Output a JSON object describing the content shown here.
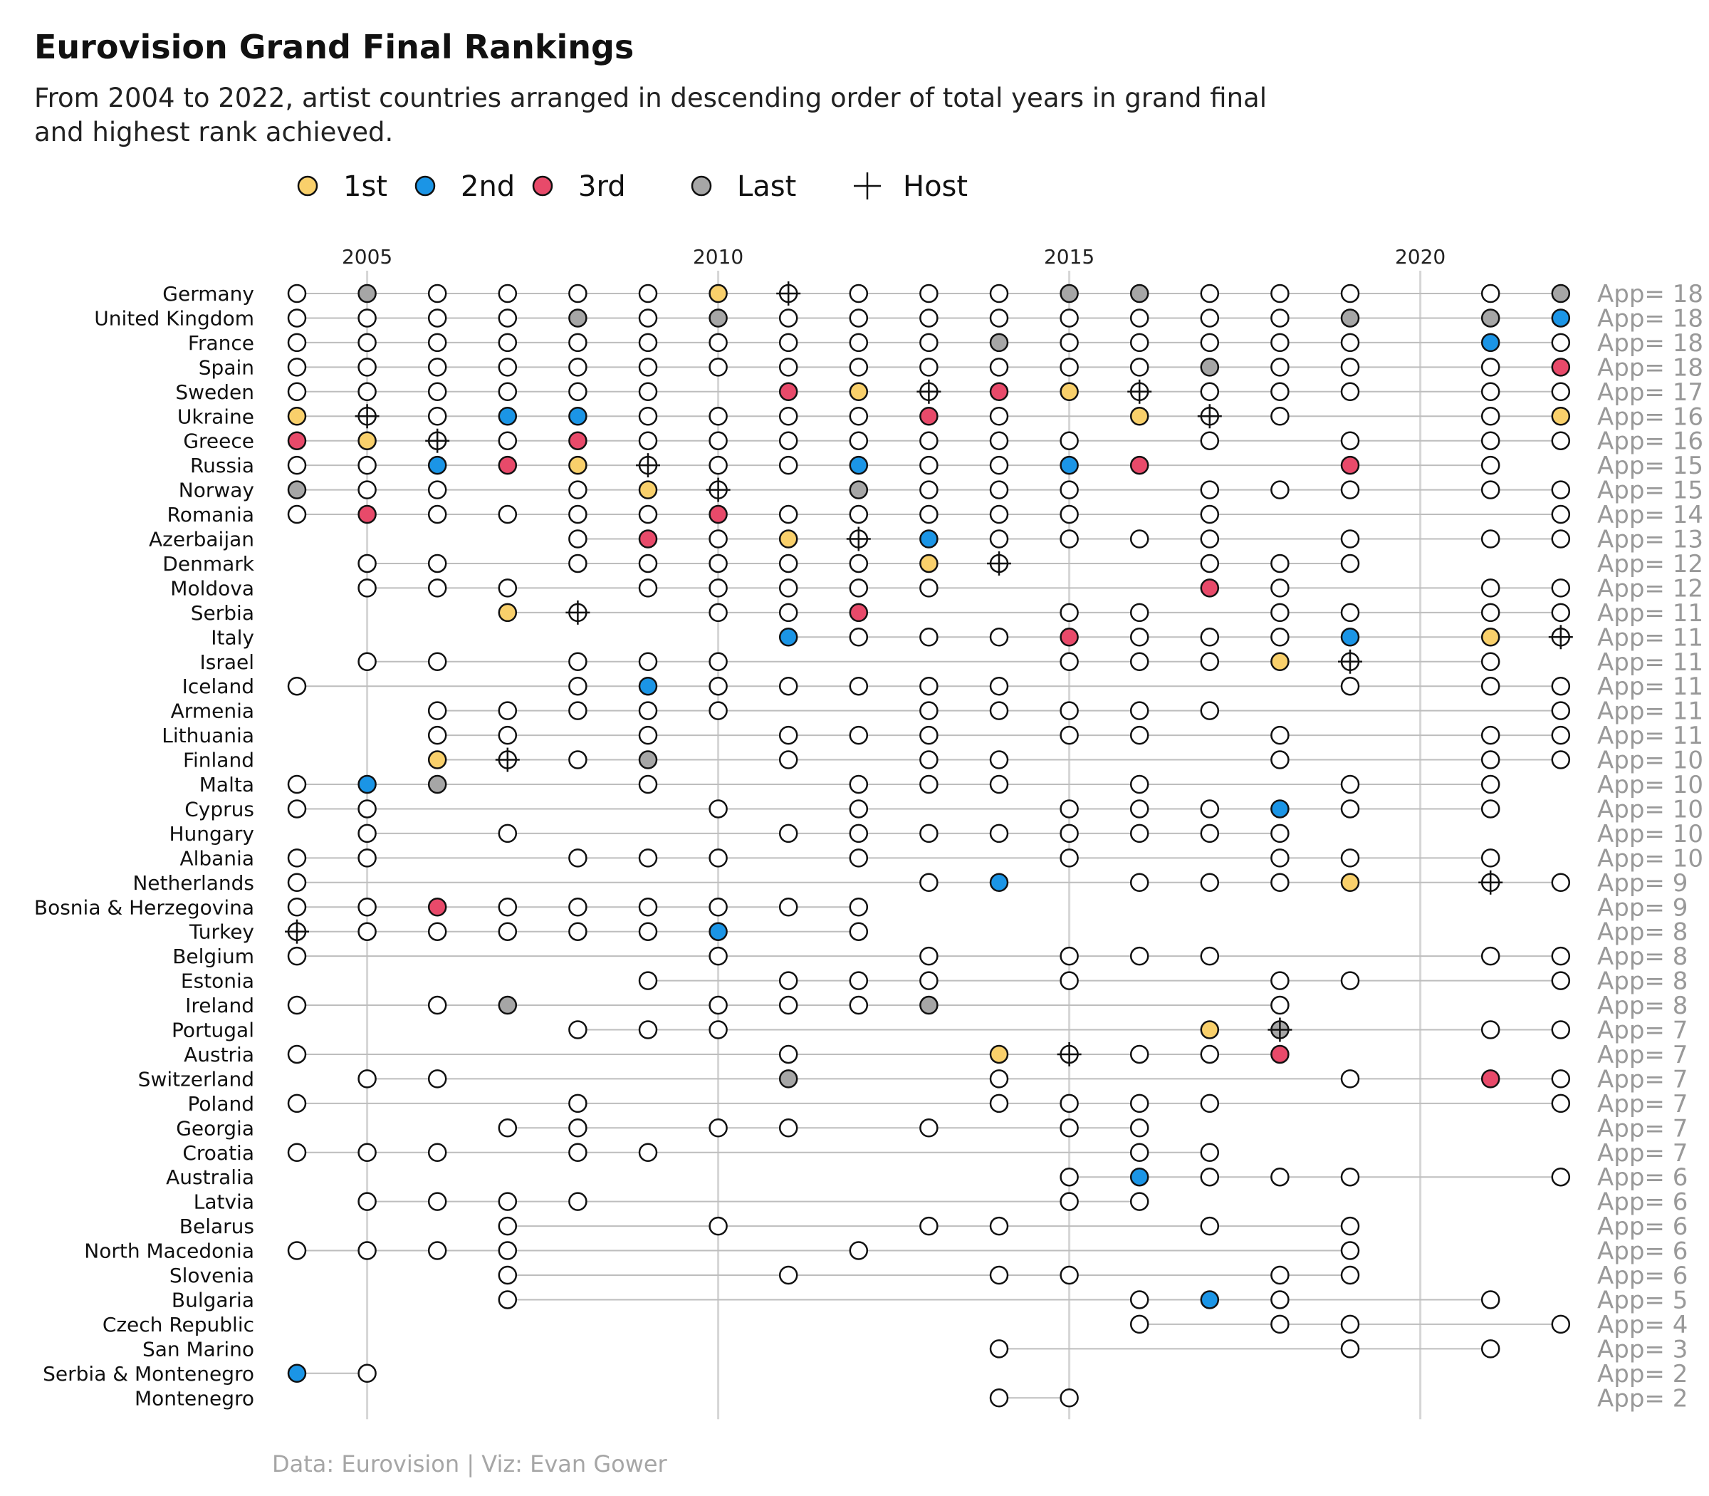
{
  "chart_data": {
    "type": "dot-timeline",
    "title": "Eurovision Grand Final Rankings",
    "subtitle_lines": [
      "From 2004 to 2022, artist countries arranged in descending order of total years in grand final",
      "and highest rank achieved."
    ],
    "caption": "Data: Eurovision | Viz: Evan Gower",
    "x_ticks": [
      2005,
      2010,
      2015,
      2020
    ],
    "x_range": [
      2004,
      2022
    ],
    "grid": "vertical-major",
    "legend_position": "top",
    "legend": [
      {
        "key": "first",
        "label": "1st",
        "color": "#f9d06b"
      },
      {
        "key": "second",
        "label": "2nd",
        "color": "#1b95e6"
      },
      {
        "key": "third",
        "label": "3rd",
        "color": "#e84a6a"
      },
      {
        "key": "last",
        "label": "Last",
        "color": "#a6a6a6"
      },
      {
        "key": "host",
        "label": "Host",
        "color": "#111111"
      }
    ],
    "countries": [
      {
        "name": "Germany",
        "apps": "App= 18",
        "years": [
          2004,
          2005,
          2006,
          2007,
          2008,
          2009,
          2010,
          2011,
          2012,
          2013,
          2014,
          2015,
          2016,
          2017,
          2018,
          2019,
          2021,
          2022
        ],
        "first": [
          2010
        ],
        "second": [],
        "third": [],
        "last": [
          2005,
          2015,
          2016,
          2022
        ],
        "host": [
          2011
        ]
      },
      {
        "name": "United Kingdom",
        "apps": "App= 18",
        "years": [
          2004,
          2005,
          2006,
          2007,
          2008,
          2009,
          2010,
          2011,
          2012,
          2013,
          2014,
          2015,
          2016,
          2017,
          2018,
          2019,
          2021,
          2022
        ],
        "first": [],
        "second": [
          2022
        ],
        "third": [],
        "last": [
          2008,
          2010,
          2019,
          2021
        ],
        "host": []
      },
      {
        "name": "France",
        "apps": "App= 18",
        "years": [
          2004,
          2005,
          2006,
          2007,
          2008,
          2009,
          2010,
          2011,
          2012,
          2013,
          2014,
          2015,
          2016,
          2017,
          2018,
          2019,
          2021,
          2022
        ],
        "first": [],
        "second": [
          2021
        ],
        "third": [],
        "last": [
          2014
        ],
        "host": []
      },
      {
        "name": "Spain",
        "apps": "App= 18",
        "years": [
          2004,
          2005,
          2006,
          2007,
          2008,
          2009,
          2010,
          2011,
          2012,
          2013,
          2014,
          2015,
          2016,
          2017,
          2018,
          2019,
          2021,
          2022
        ],
        "first": [],
        "second": [],
        "third": [
          2022
        ],
        "last": [
          2017
        ],
        "host": []
      },
      {
        "name": "Sweden",
        "apps": "App= 17",
        "years": [
          2004,
          2005,
          2006,
          2007,
          2008,
          2009,
          2011,
          2012,
          2013,
          2014,
          2015,
          2016,
          2017,
          2018,
          2019,
          2021,
          2022
        ],
        "first": [
          2012,
          2015
        ],
        "second": [],
        "third": [
          2011,
          2014
        ],
        "last": [],
        "host": [
          2013,
          2016
        ]
      },
      {
        "name": "Ukraine",
        "apps": "App= 16",
        "years": [
          2004,
          2005,
          2006,
          2007,
          2008,
          2009,
          2010,
          2011,
          2012,
          2013,
          2014,
          2016,
          2017,
          2018,
          2021,
          2022
        ],
        "first": [
          2004,
          2016,
          2022
        ],
        "second": [
          2007,
          2008
        ],
        "third": [
          2013
        ],
        "last": [],
        "host": [
          2005,
          2017
        ]
      },
      {
        "name": "Greece",
        "apps": "App= 16",
        "years": [
          2004,
          2005,
          2006,
          2007,
          2008,
          2009,
          2010,
          2011,
          2012,
          2013,
          2014,
          2015,
          2017,
          2019,
          2021,
          2022
        ],
        "first": [
          2005
        ],
        "second": [],
        "third": [
          2004,
          2008
        ],
        "last": [],
        "host": [
          2006
        ]
      },
      {
        "name": "Russia",
        "apps": "App= 15",
        "years": [
          2004,
          2005,
          2006,
          2007,
          2008,
          2009,
          2010,
          2011,
          2012,
          2013,
          2014,
          2015,
          2016,
          2019,
          2021
        ],
        "first": [
          2008
        ],
        "second": [
          2006,
          2012,
          2015
        ],
        "third": [
          2007,
          2016,
          2019
        ],
        "last": [],
        "host": [
          2009
        ]
      },
      {
        "name": "Norway",
        "apps": "App= 15",
        "years": [
          2004,
          2005,
          2006,
          2008,
          2009,
          2010,
          2012,
          2013,
          2014,
          2015,
          2017,
          2018,
          2019,
          2021,
          2022
        ],
        "first": [
          2009
        ],
        "second": [],
        "third": [],
        "last": [
          2004,
          2012
        ],
        "host": [
          2010
        ]
      },
      {
        "name": "Romania",
        "apps": "App= 14",
        "years": [
          2004,
          2005,
          2006,
          2007,
          2008,
          2009,
          2010,
          2011,
          2012,
          2013,
          2014,
          2015,
          2017,
          2022
        ],
        "first": [],
        "second": [],
        "third": [
          2005,
          2010
        ],
        "last": [],
        "host": []
      },
      {
        "name": "Azerbaijan",
        "apps": "App= 13",
        "years": [
          2008,
          2009,
          2010,
          2011,
          2012,
          2013,
          2014,
          2015,
          2016,
          2017,
          2019,
          2021,
          2022
        ],
        "first": [
          2011
        ],
        "second": [
          2013
        ],
        "third": [
          2009
        ],
        "last": [],
        "host": [
          2012
        ]
      },
      {
        "name": "Denmark",
        "apps": "App= 12",
        "years": [
          2005,
          2006,
          2008,
          2009,
          2010,
          2011,
          2012,
          2013,
          2014,
          2017,
          2018,
          2019
        ],
        "first": [
          2013
        ],
        "second": [],
        "third": [],
        "last": [],
        "host": [
          2014
        ]
      },
      {
        "name": "Moldova",
        "apps": "App= 12",
        "years": [
          2005,
          2006,
          2007,
          2009,
          2010,
          2011,
          2012,
          2013,
          2017,
          2018,
          2021,
          2022
        ],
        "first": [],
        "second": [],
        "third": [
          2017
        ],
        "last": [],
        "host": []
      },
      {
        "name": "Serbia",
        "apps": "App= 11",
        "years": [
          2007,
          2008,
          2010,
          2011,
          2012,
          2015,
          2016,
          2018,
          2019,
          2021,
          2022
        ],
        "first": [
          2007
        ],
        "second": [],
        "third": [
          2012
        ],
        "last": [],
        "host": [
          2008
        ]
      },
      {
        "name": "Italy",
        "apps": "App= 11",
        "years": [
          2011,
          2012,
          2013,
          2014,
          2015,
          2016,
          2017,
          2018,
          2019,
          2021,
          2022
        ],
        "first": [
          2021
        ],
        "second": [
          2011,
          2019
        ],
        "third": [
          2015
        ],
        "last": [],
        "host": [
          2022
        ]
      },
      {
        "name": "Israel",
        "apps": "App= 11",
        "years": [
          2005,
          2006,
          2008,
          2009,
          2010,
          2015,
          2016,
          2017,
          2018,
          2019,
          2021
        ],
        "first": [
          2018
        ],
        "second": [],
        "third": [],
        "last": [],
        "host": [
          2019
        ]
      },
      {
        "name": "Iceland",
        "apps": "App= 11",
        "years": [
          2004,
          2008,
          2009,
          2010,
          2011,
          2012,
          2013,
          2014,
          2019,
          2021,
          2022
        ],
        "first": [],
        "second": [
          2009
        ],
        "third": [],
        "last": [],
        "host": []
      },
      {
        "name": "Armenia",
        "apps": "App= 11",
        "years": [
          2006,
          2007,
          2008,
          2009,
          2010,
          2013,
          2014,
          2015,
          2016,
          2017,
          2022
        ],
        "first": [],
        "second": [],
        "third": [],
        "last": [],
        "host": []
      },
      {
        "name": "Lithuania",
        "apps": "App= 11",
        "years": [
          2006,
          2007,
          2009,
          2011,
          2012,
          2013,
          2015,
          2016,
          2018,
          2021,
          2022
        ],
        "first": [],
        "second": [],
        "third": [],
        "last": [],
        "host": []
      },
      {
        "name": "Finland",
        "apps": "App= 10",
        "years": [
          2006,
          2007,
          2008,
          2009,
          2011,
          2013,
          2014,
          2018,
          2021,
          2022
        ],
        "first": [
          2006
        ],
        "second": [],
        "third": [],
        "last": [
          2009
        ],
        "host": [
          2007
        ]
      },
      {
        "name": "Malta",
        "apps": "App= 10",
        "years": [
          2004,
          2005,
          2006,
          2009,
          2012,
          2013,
          2014,
          2016,
          2019,
          2021
        ],
        "first": [],
        "second": [
          2005
        ],
        "third": [],
        "last": [
          2006
        ],
        "host": []
      },
      {
        "name": "Cyprus",
        "apps": "App= 10",
        "years": [
          2004,
          2005,
          2010,
          2012,
          2015,
          2016,
          2017,
          2018,
          2019,
          2021
        ],
        "first": [],
        "second": [
          2018
        ],
        "third": [],
        "last": [],
        "host": []
      },
      {
        "name": "Hungary",
        "apps": "App= 10",
        "years": [
          2005,
          2007,
          2011,
          2012,
          2013,
          2014,
          2015,
          2016,
          2017,
          2018
        ],
        "first": [],
        "second": [],
        "third": [],
        "last": [],
        "host": []
      },
      {
        "name": "Albania",
        "apps": "App= 10",
        "years": [
          2004,
          2005,
          2008,
          2009,
          2010,
          2012,
          2015,
          2018,
          2019,
          2021
        ],
        "first": [],
        "second": [],
        "third": [],
        "last": [],
        "host": []
      },
      {
        "name": "Netherlands",
        "apps": "App= 9",
        "years": [
          2004,
          2013,
          2014,
          2016,
          2017,
          2018,
          2019,
          2021,
          2022
        ],
        "first": [
          2019
        ],
        "second": [
          2014
        ],
        "third": [],
        "last": [],
        "host": [
          2021
        ]
      },
      {
        "name": "Bosnia & Herzegovina",
        "apps": "App= 9",
        "years": [
          2004,
          2005,
          2006,
          2007,
          2008,
          2009,
          2010,
          2011,
          2012
        ],
        "first": [],
        "second": [],
        "third": [
          2006
        ],
        "last": [],
        "host": []
      },
      {
        "name": "Turkey",
        "apps": "App= 8",
        "years": [
          2004,
          2005,
          2006,
          2007,
          2008,
          2009,
          2010,
          2012
        ],
        "first": [],
        "second": [
          2010
        ],
        "third": [],
        "last": [],
        "host": [
          2004
        ]
      },
      {
        "name": "Belgium",
        "apps": "App= 8",
        "years": [
          2004,
          2010,
          2013,
          2015,
          2016,
          2017,
          2021,
          2022
        ],
        "first": [],
        "second": [],
        "third": [],
        "last": [],
        "host": []
      },
      {
        "name": "Estonia",
        "apps": "App= 8",
        "years": [
          2009,
          2011,
          2012,
          2013,
          2015,
          2018,
          2019,
          2022
        ],
        "first": [],
        "second": [],
        "third": [],
        "last": [],
        "host": []
      },
      {
        "name": "Ireland",
        "apps": "App= 8",
        "years": [
          2004,
          2006,
          2007,
          2010,
          2011,
          2012,
          2013,
          2018
        ],
        "first": [],
        "second": [],
        "third": [],
        "last": [
          2007,
          2013
        ],
        "host": []
      },
      {
        "name": "Portugal",
        "apps": "App= 7",
        "years": [
          2008,
          2009,
          2010,
          2017,
          2018,
          2021,
          2022
        ],
        "first": [
          2017
        ],
        "second": [],
        "third": [],
        "last": [
          2018
        ],
        "host": [
          2018
        ]
      },
      {
        "name": "Austria",
        "apps": "App= 7",
        "years": [
          2004,
          2011,
          2014,
          2015,
          2016,
          2017,
          2018
        ],
        "first": [
          2014
        ],
        "second": [],
        "third": [
          2018
        ],
        "last": [],
        "host": [
          2015
        ]
      },
      {
        "name": "Switzerland",
        "apps": "App= 7",
        "years": [
          2005,
          2006,
          2011,
          2014,
          2019,
          2021,
          2022
        ],
        "first": [],
        "second": [],
        "third": [
          2021
        ],
        "last": [
          2011
        ],
        "host": []
      },
      {
        "name": "Poland",
        "apps": "App= 7",
        "years": [
          2004,
          2008,
          2014,
          2015,
          2016,
          2017,
          2022
        ],
        "first": [],
        "second": [],
        "third": [],
        "last": [],
        "host": []
      },
      {
        "name": "Georgia",
        "apps": "App= 7",
        "years": [
          2007,
          2008,
          2010,
          2011,
          2013,
          2015,
          2016
        ],
        "first": [],
        "second": [],
        "third": [],
        "last": [],
        "host": []
      },
      {
        "name": "Croatia",
        "apps": "App= 7",
        "years": [
          2004,
          2005,
          2006,
          2008,
          2009,
          2016,
          2017
        ],
        "first": [],
        "second": [],
        "third": [],
        "last": [],
        "host": []
      },
      {
        "name": "Australia",
        "apps": "App= 6",
        "years": [
          2015,
          2016,
          2017,
          2018,
          2019,
          2022
        ],
        "first": [],
        "second": [
          2016
        ],
        "third": [],
        "last": [],
        "host": []
      },
      {
        "name": "Latvia",
        "apps": "App= 6",
        "years": [
          2005,
          2006,
          2007,
          2008,
          2015,
          2016
        ],
        "first": [],
        "second": [],
        "third": [],
        "last": [],
        "host": []
      },
      {
        "name": "Belarus",
        "apps": "App= 6",
        "years": [
          2007,
          2010,
          2013,
          2014,
          2017,
          2019
        ],
        "first": [],
        "second": [],
        "third": [],
        "last": [],
        "host": []
      },
      {
        "name": "North Macedonia",
        "apps": "App= 6",
        "years": [
          2004,
          2005,
          2006,
          2007,
          2012,
          2019
        ],
        "first": [],
        "second": [],
        "third": [],
        "last": [],
        "host": []
      },
      {
        "name": "Slovenia",
        "apps": "App= 6",
        "years": [
          2007,
          2011,
          2014,
          2015,
          2018,
          2019
        ],
        "first": [],
        "second": [],
        "third": [],
        "last": [],
        "host": []
      },
      {
        "name": "Bulgaria",
        "apps": "App= 5",
        "years": [
          2007,
          2016,
          2017,
          2018,
          2021
        ],
        "first": [],
        "second": [
          2017
        ],
        "third": [],
        "last": [],
        "host": []
      },
      {
        "name": "Czech Republic",
        "apps": "App= 4",
        "years": [
          2016,
          2018,
          2019,
          2022
        ],
        "first": [],
        "second": [],
        "third": [],
        "last": [],
        "host": []
      },
      {
        "name": "San Marino",
        "apps": "App= 3",
        "years": [
          2014,
          2019,
          2021
        ],
        "first": [],
        "second": [],
        "third": [],
        "last": [],
        "host": []
      },
      {
        "name": "Serbia & Montenegro",
        "apps": "App= 2",
        "years": [
          2004,
          2005
        ],
        "first": [],
        "second": [
          2004
        ],
        "third": [],
        "last": [],
        "host": []
      },
      {
        "name": "Montenegro",
        "apps": "App= 2",
        "years": [
          2014,
          2015
        ],
        "first": [],
        "second": [],
        "third": [],
        "last": [],
        "host": []
      }
    ]
  }
}
